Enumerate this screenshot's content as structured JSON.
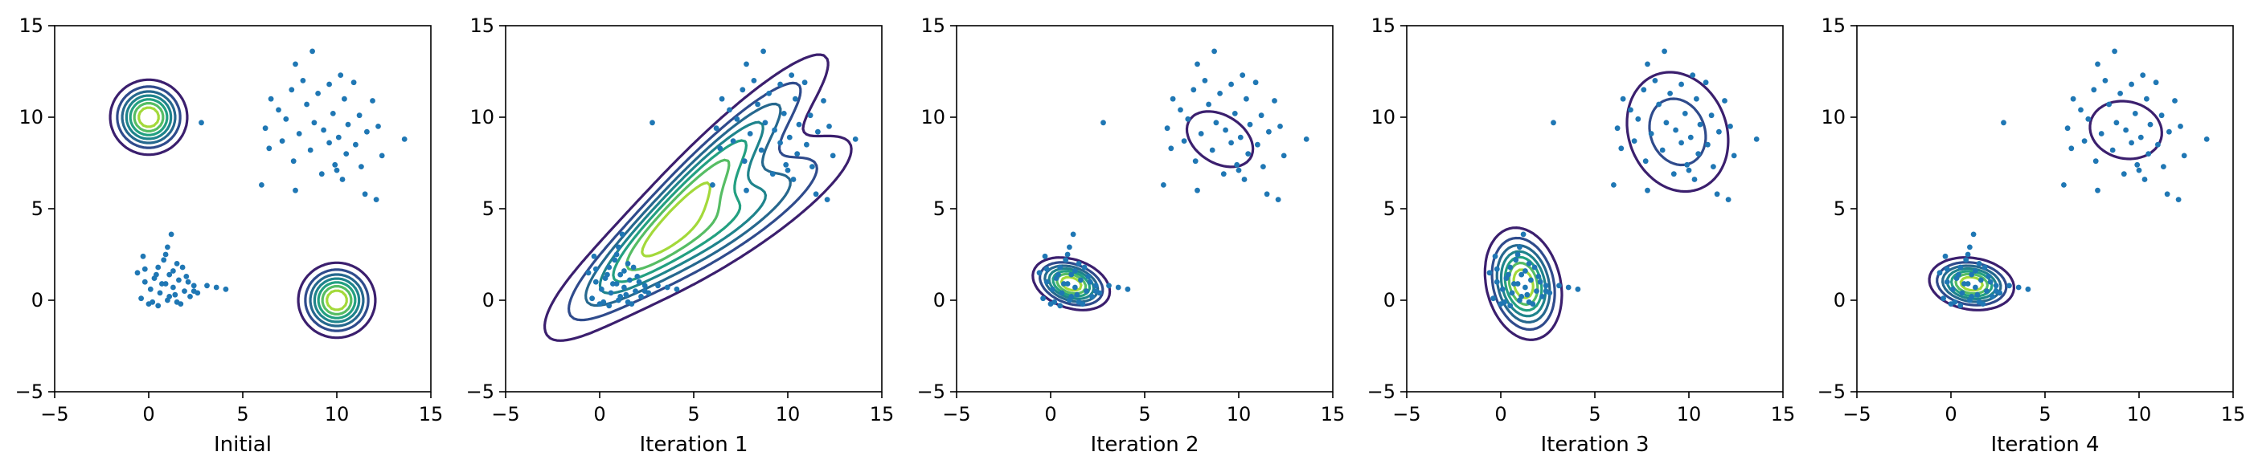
{
  "colors": {
    "points": "#1f77b4",
    "contour_levels": [
      "#3b1f6e",
      "#2f4b8c",
      "#26688e",
      "#1f848c",
      "#23a081",
      "#56bd64",
      "#a3d93a"
    ],
    "axes": "#000000",
    "background": "#ffffff"
  },
  "chart_data": [
    {
      "type": "scatter",
      "title": "",
      "xlabel": "Initial",
      "ylabel": "",
      "xlim": [
        -5,
        15
      ],
      "ylim": [
        -5,
        15
      ],
      "xticks": [
        -5,
        0,
        5,
        10,
        15
      ],
      "yticks": [
        -5,
        0,
        5,
        10,
        15
      ],
      "grid": false,
      "points": [
        [
          1.2,
          3.6
        ],
        [
          1.0,
          2.9
        ],
        [
          -0.3,
          2.4
        ],
        [
          0.8,
          2.2
        ],
        [
          1.5,
          2.0
        ],
        [
          0.5,
          1.8
        ],
        [
          -0.6,
          1.5
        ],
        [
          1.1,
          1.4
        ],
        [
          2.0,
          1.3
        ],
        [
          0.3,
          1.2
        ],
        [
          1.6,
          1.1
        ],
        [
          -0.2,
          1.0
        ],
        [
          0.9,
          0.9
        ],
        [
          2.4,
          0.8
        ],
        [
          1.3,
          0.7
        ],
        [
          0.1,
          0.6
        ],
        [
          1.9,
          0.5
        ],
        [
          3.1,
          0.8
        ],
        [
          0.6,
          0.4
        ],
        [
          1.4,
          0.3
        ],
        [
          2.2,
          0.2
        ],
        [
          -0.4,
          0.1
        ],
        [
          1.0,
          0.0
        ],
        [
          0.2,
          -0.1
        ],
        [
          1.7,
          -0.2
        ],
        [
          0.5,
          -0.3
        ],
        [
          2.6,
          0.4
        ],
        [
          3.6,
          0.7
        ],
        [
          4.1,
          0.6
        ],
        [
          0.0,
          -0.2
        ],
        [
          -0.2,
          1.7
        ],
        [
          1.8,
          1.8
        ],
        [
          2.4,
          0.5
        ],
        [
          0.7,
          0.9
        ],
        [
          1.1,
          0.2
        ],
        [
          1.5,
          -0.1
        ],
        [
          0.4,
          1.4
        ],
        [
          2.1,
          1.0
        ],
        [
          0.9,
          2.5
        ],
        [
          1.3,
          1.6
        ],
        [
          8.7,
          13.6
        ],
        [
          7.8,
          12.9
        ],
        [
          10.2,
          12.3
        ],
        [
          8.2,
          12.0
        ],
        [
          9.6,
          11.8
        ],
        [
          10.9,
          11.9
        ],
        [
          7.6,
          11.5
        ],
        [
          9.0,
          11.3
        ],
        [
          10.4,
          11.0
        ],
        [
          6.5,
          11.0
        ],
        [
          11.9,
          10.9
        ],
        [
          8.4,
          10.7
        ],
        [
          6.9,
          10.4
        ],
        [
          9.8,
          10.2
        ],
        [
          11.2,
          10.1
        ],
        [
          7.3,
          9.9
        ],
        [
          8.8,
          9.7
        ],
        [
          10.6,
          9.6
        ],
        [
          12.2,
          9.5
        ],
        [
          6.2,
          9.4
        ],
        [
          9.3,
          9.3
        ],
        [
          11.6,
          9.2
        ],
        [
          8.0,
          9.1
        ],
        [
          10.1,
          8.9
        ],
        [
          13.6,
          8.8
        ],
        [
          7.1,
          8.7
        ],
        [
          9.6,
          8.6
        ],
        [
          11.0,
          8.5
        ],
        [
          6.4,
          8.3
        ],
        [
          8.6,
          8.2
        ],
        [
          10.5,
          8.0
        ],
        [
          12.4,
          7.9
        ],
        [
          7.7,
          7.6
        ],
        [
          9.9,
          7.4
        ],
        [
          11.3,
          7.3
        ],
        [
          9.2,
          6.9
        ],
        [
          10.3,
          6.6
        ],
        [
          6.0,
          6.3
        ],
        [
          7.8,
          6.0
        ],
        [
          11.5,
          5.8
        ],
        [
          12.1,
          5.5
        ],
        [
          10.0,
          7.1
        ],
        [
          2.8,
          9.7
        ]
      ],
      "gaussians": [
        {
          "mean": [
            0,
            10
          ],
          "std": [
            1.0,
            1.0
          ],
          "rho": 0.0
        },
        {
          "mean": [
            10,
            0
          ],
          "std": [
            1.0,
            1.0
          ],
          "rho": 0.0
        }
      ]
    },
    {
      "type": "scatter",
      "title": "",
      "xlabel": "Iteration 1",
      "ylabel": "",
      "xlim": [
        -5,
        15
      ],
      "ylim": [
        -5,
        15
      ],
      "xticks": [
        -5,
        0,
        5,
        10,
        15
      ],
      "yticks": [
        -5,
        0,
        5,
        10,
        15
      ],
      "grid": false,
      "gaussians": [
        {
          "mean": [
            5.3,
            6.2
          ],
          "std": [
            3.6,
            3.8
          ],
          "rho": 0.93
        },
        {
          "mean": [
            5.8,
            3.9
          ],
          "std": [
            4.2,
            2.8
          ],
          "rho": 0.86
        }
      ]
    },
    {
      "type": "scatter",
      "title": "",
      "xlabel": "Iteration 2",
      "ylabel": "",
      "xlim": [
        -5,
        15
      ],
      "ylim": [
        -5,
        15
      ],
      "xticks": [
        -5,
        0,
        5,
        10,
        15
      ],
      "yticks": [
        -5,
        0,
        5,
        10,
        15
      ],
      "grid": false,
      "gaussians": [
        {
          "mean": [
            9.0,
            8.8
          ],
          "std": [
            2.2,
            1.9
          ],
          "rho": -0.35
        },
        {
          "mean": [
            1.1,
            0.9
          ],
          "std": [
            1.0,
            0.7
          ],
          "rho": -0.3
        }
      ]
    },
    {
      "type": "scatter",
      "title": "",
      "xlabel": "Iteration 3",
      "ylabel": "",
      "xlim": [
        -5,
        15
      ],
      "ylim": [
        -5,
        15
      ],
      "xticks": [
        -5,
        0,
        5,
        10,
        15
      ],
      "yticks": [
        -5,
        0,
        5,
        10,
        15
      ],
      "grid": false,
      "gaussians": [
        {
          "mean": [
            9.4,
            9.2
          ],
          "std": [
            1.9,
            2.3
          ],
          "rho": -0.15
        },
        {
          "mean": [
            1.2,
            0.9
          ],
          "std": [
            1.0,
            1.5
          ],
          "rho": -0.2
        }
      ]
    },
    {
      "type": "scatter",
      "title": "",
      "xlabel": "Iteration 4",
      "ylabel": "",
      "xlim": [
        -5,
        15
      ],
      "ylim": [
        -5,
        15
      ],
      "xticks": [
        -5,
        0,
        5,
        10,
        15
      ],
      "yticks": [
        -5,
        0,
        5,
        10,
        15
      ],
      "grid": false,
      "gaussians": [
        {
          "mean": [
            9.3,
            9.3
          ],
          "std": [
            2.3,
            1.9
          ],
          "rho": -0.1
        },
        {
          "mean": [
            1.1,
            0.9
          ],
          "std": [
            1.1,
            0.7
          ],
          "rho": -0.15
        }
      ]
    }
  ]
}
